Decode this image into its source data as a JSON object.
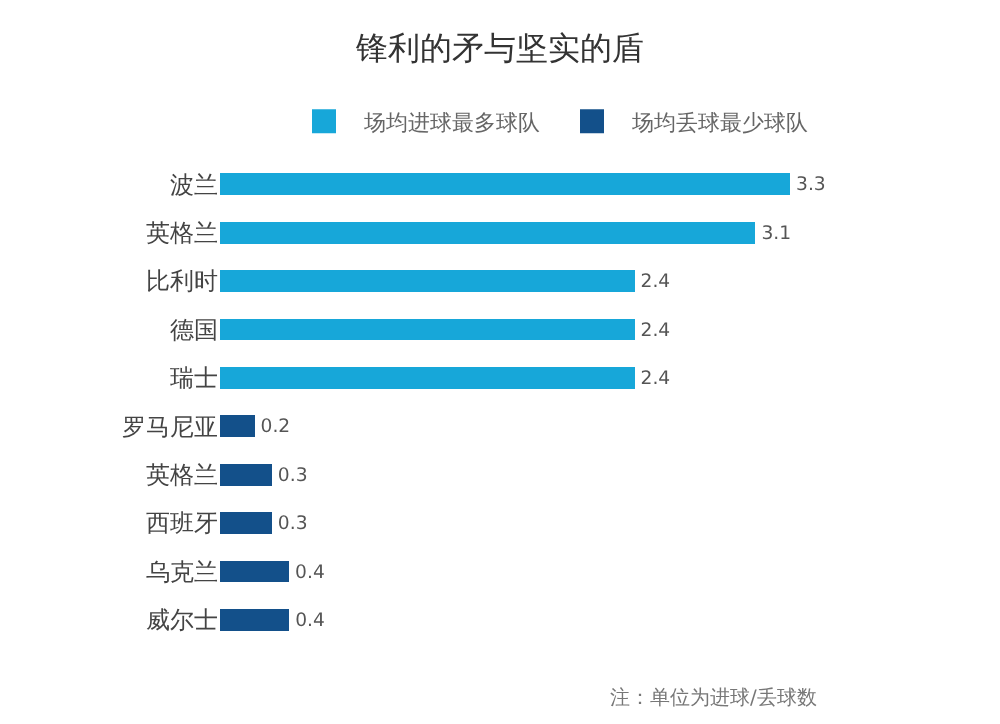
{
  "chart_data": {
    "type": "bar",
    "orientation": "horizontal",
    "title": "锋利的矛与坚实的盾",
    "categories": [
      "波兰",
      "英格兰",
      "比利时",
      "德国",
      "瑞士",
      "罗马尼亚",
      "英格兰",
      "西班牙",
      "乌克兰",
      "威尔士"
    ],
    "series": [
      {
        "name": "场均进球最多球队",
        "color": "#17a7d9",
        "values": [
          3.3,
          3.1,
          2.4,
          2.4,
          2.4,
          null,
          null,
          null,
          null,
          null
        ]
      },
      {
        "name": "场均丢球最少球队",
        "color": "#13508a",
        "values": [
          null,
          null,
          null,
          null,
          null,
          0.2,
          0.3,
          0.3,
          0.4,
          0.4
        ]
      }
    ],
    "stacked": true,
    "tick_labels": "y",
    "data_labels": true,
    "legend": "top right",
    "annotations": [
      "注：单位为进球/丢球数"
    ]
  }
}
